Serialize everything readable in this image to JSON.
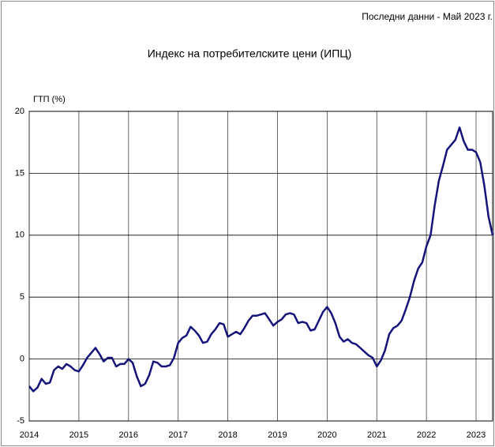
{
  "chart_data": {
    "type": "line",
    "title": "Индекс на потребителските цени (ИПЦ)",
    "subtitle": "Последни данни - Май 2023 г.",
    "y_label": "ГТП (%)",
    "categories": [
      "2014",
      null,
      null,
      null,
      null,
      null,
      null,
      null,
      null,
      null,
      null,
      null,
      "2015",
      null,
      null,
      null,
      null,
      null,
      null,
      null,
      null,
      null,
      null,
      null,
      "2016",
      null,
      null,
      null,
      null,
      null,
      null,
      null,
      null,
      null,
      null,
      null,
      "2017",
      null,
      null,
      null,
      null,
      null,
      null,
      null,
      null,
      null,
      null,
      null,
      "2018",
      null,
      null,
      null,
      null,
      null,
      null,
      null,
      null,
      null,
      null,
      null,
      "2019",
      null,
      null,
      null,
      null,
      null,
      null,
      null,
      null,
      null,
      null,
      null,
      "2020",
      null,
      null,
      null,
      null,
      null,
      null,
      null,
      null,
      null,
      null,
      null,
      "2021",
      null,
      null,
      null,
      null,
      null,
      null,
      null,
      null,
      null,
      null,
      null,
      "2022",
      null,
      null,
      null,
      null,
      null,
      null,
      null,
      null,
      null,
      null,
      null,
      "2023",
      null,
      null,
      null,
      null
    ],
    "series": [
      {
        "color": "#14147a",
        "values": [
          -2.2,
          -2.6,
          -2.3,
          -1.6,
          -2.0,
          -1.9,
          -0.9,
          -0.6,
          -0.8,
          -0.4,
          -0.6,
          -0.9,
          -1.0,
          -0.5,
          0.1,
          0.5,
          0.9,
          0.4,
          -0.2,
          0.1,
          0.1,
          -0.6,
          -0.4,
          -0.4,
          0.0,
          -0.3,
          -1.4,
          -2.2,
          -2.0,
          -1.3,
          -0.2,
          -0.3,
          -0.6,
          -0.6,
          -0.5,
          0.1,
          1.3,
          1.7,
          1.9,
          2.6,
          2.3,
          1.9,
          1.3,
          1.4,
          2.0,
          2.4,
          2.9,
          2.8,
          1.8,
          2.0,
          2.2,
          2.0,
          2.5,
          3.1,
          3.5,
          3.5,
          3.6,
          3.7,
          3.2,
          2.7,
          3.0,
          3.2,
          3.6,
          3.7,
          3.6,
          2.9,
          3.0,
          2.9,
          2.3,
          2.4,
          3.1,
          3.8,
          4.2,
          3.7,
          2.9,
          1.8,
          1.4,
          1.6,
          1.3,
          1.2,
          0.9,
          0.6,
          0.3,
          0.1,
          -0.6,
          -0.1,
          0.7,
          2.0,
          2.5,
          2.7,
          3.1,
          4.0,
          5.0,
          6.3,
          7.3,
          7.8,
          9.1,
          10.0,
          12.4,
          14.4,
          15.6,
          16.9,
          17.3,
          17.7,
          18.7,
          17.6,
          16.9,
          16.9,
          16.7,
          15.9,
          14.0,
          11.5,
          10.0
        ]
      }
    ],
    "ylim": [
      -5,
      20
    ],
    "yticks": [
      20,
      15,
      10,
      5,
      0,
      -5
    ],
    "grid": true
  }
}
